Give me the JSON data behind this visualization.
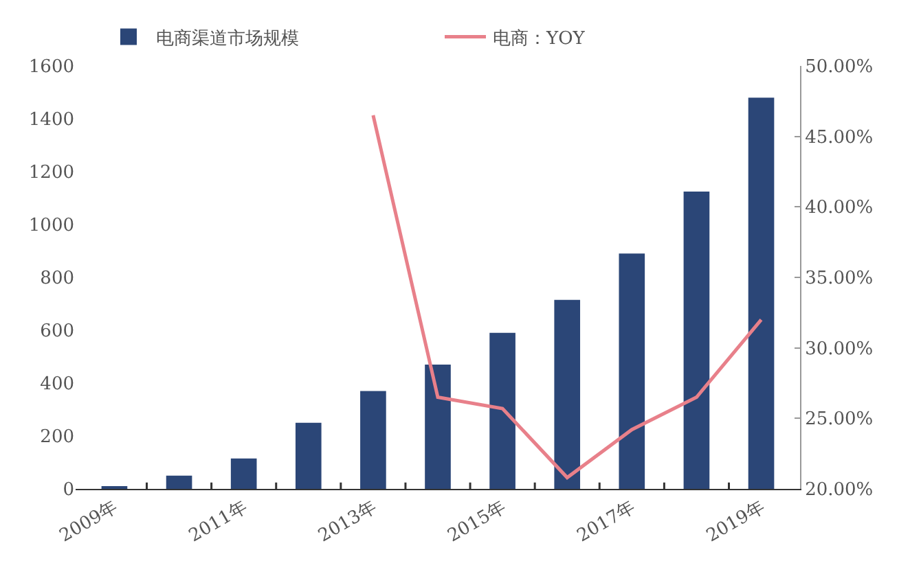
{
  "chart_data": {
    "type": "bar",
    "categories": [
      "2009年",
      null,
      "2011年",
      null,
      "2013年",
      null,
      "2015年",
      null,
      "2017年",
      null,
      "2019年"
    ],
    "series": [
      {
        "name": "电商渠道市场规模",
        "color": "#2b4677",
        "values": [
          8,
          50,
          115,
          250,
          370,
          470,
          590,
          715,
          890,
          1125,
          1480
        ]
      },
      {
        "name": "电商：YOY",
        "type": "line",
        "axis": "y2",
        "color": "#e8808a",
        "values": [
          null,
          null,
          null,
          null,
          46.5,
          26.5,
          25.7,
          20.8,
          24.2,
          26.5,
          32
        ]
      }
    ],
    "ylim": [
      0,
      1600
    ],
    "yticks": [
      0,
      200,
      400,
      600,
      800,
      1000,
      1200,
      1400,
      1600
    ],
    "y2lim": [
      20,
      50
    ],
    "y2ticks": [
      {
        "value": 20,
        "label": "20.00%"
      },
      {
        "value": 25,
        "label": "25.00%"
      },
      {
        "value": 30,
        "label": "30.00%"
      },
      {
        "value": 35,
        "label": "35.00%"
      },
      {
        "value": 40,
        "label": "40.00%"
      },
      {
        "value": 45,
        "label": "45.00%"
      },
      {
        "value": 50,
        "label": "50.00%"
      }
    ],
    "grid": false,
    "legend": "top",
    "marker": "none"
  }
}
